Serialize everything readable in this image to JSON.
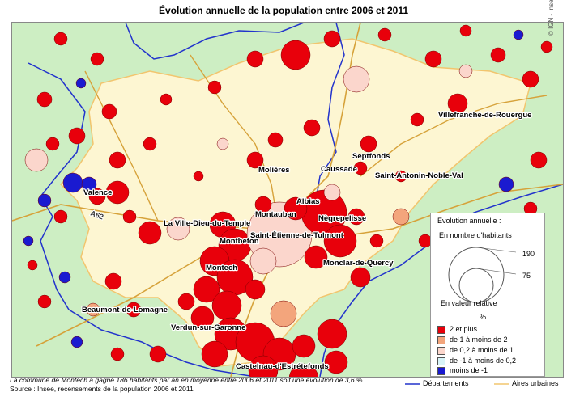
{
  "title": "Évolution annuelle de la population entre 2006 et 2011",
  "copyright": "© IGN - Insee 2013",
  "colors": {
    "region_green": "#cdeec3",
    "urban_yellow": "#fdf6d2",
    "urban_border": "#f2c56e",
    "department_border": "#2233cc",
    "road": "#d6a23a",
    "class_1": "#e8000b",
    "class_2": "#f3a57c",
    "class_3": "#fbd6cc",
    "class_4": "#d8f4f8",
    "class_5": "#1a1ad0"
  },
  "cities": [
    {
      "name": "Villefranche-de-Rouergue"
    },
    {
      "name": "Molières"
    },
    {
      "name": "Septfonds"
    },
    {
      "name": "Caussade"
    },
    {
      "name": "Saint-Antonin-Noble-Val"
    },
    {
      "name": "Valence"
    },
    {
      "name": "Albias"
    },
    {
      "name": "Nègrepelisse"
    },
    {
      "name": "Montauban"
    },
    {
      "name": "La Ville-Dieu-du-Temple"
    },
    {
      "name": "Saint-Étienne-de-Tulmont"
    },
    {
      "name": "Montbeton"
    },
    {
      "name": "Montech"
    },
    {
      "name": "Monclar-de-Quercy"
    },
    {
      "name": "Beaumont-de-Lomagne"
    },
    {
      "name": "Verdun-sur-Garonne"
    },
    {
      "name": "Castelnau-d'Estrétefonds"
    }
  ],
  "road_label": "A62",
  "legend": {
    "title": "Évolution annuelle :",
    "subtitle_abs": "En nombre d'habitants",
    "circle_large_value": "190",
    "circle_small_value": "75",
    "subtitle_rel": "En valeur relative",
    "unit": "%",
    "classes": [
      {
        "label": "2 et plus",
        "color": "#e8000b"
      },
      {
        "label": "de 1 à moins de 2",
        "color": "#f3a57c"
      },
      {
        "label": "de 0,2 à moins de 1",
        "color": "#fbd6cc"
      },
      {
        "label": "de -1 à moins de 0,2",
        "color": "#d8f4f8"
      },
      {
        "label": "moins de -1",
        "color": "#1a1ad0"
      }
    ]
  },
  "note": "La commune de Montech a gagné 186 habitants par an en moyenne entre 2006 et 2011 soit une évolution de 3,6 %.",
  "source": "Source : Insee, recensements de la population 2006 et 2011",
  "bottom_legend": {
    "departments": "Départements",
    "urban_areas": "Aires urbaines"
  }
}
